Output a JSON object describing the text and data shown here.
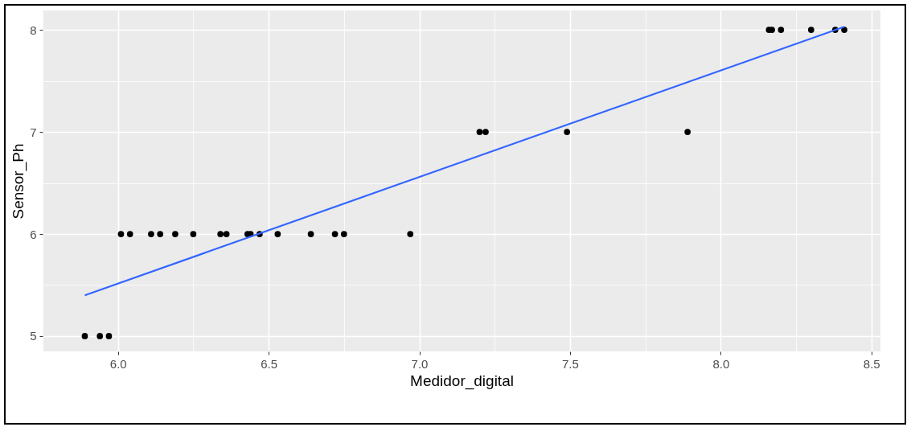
{
  "chart_data": {
    "type": "scatter",
    "xlabel": "Medidor_digital",
    "ylabel": "Sensor_Ph",
    "grid": true,
    "xlim": [
      5.75,
      8.53
    ],
    "ylim": [
      4.85,
      8.19
    ],
    "xticks": [
      {
        "value": 5.75,
        "label": null
      },
      {
        "value": 6.0,
        "label": "6.0"
      },
      {
        "value": 6.25,
        "label": null
      },
      {
        "value": 6.5,
        "label": "6.5"
      },
      {
        "value": 6.75,
        "label": null
      },
      {
        "value": 7.0,
        "label": "7.0"
      },
      {
        "value": 7.25,
        "label": null
      },
      {
        "value": 7.5,
        "label": "7.5"
      },
      {
        "value": 7.75,
        "label": null
      },
      {
        "value": 8.0,
        "label": "8.0"
      },
      {
        "value": 8.25,
        "label": null
      },
      {
        "value": 8.5,
        "label": "8.5"
      }
    ],
    "yticks": [
      5,
      {
        "value": 5.5,
        "label": null
      },
      6,
      {
        "value": 6.5,
        "label": null
      },
      7,
      {
        "value": 7.5,
        "label": null
      },
      8
    ],
    "series": [
      {
        "marker": "circle",
        "color": "#000000",
        "x": [
          5.89,
          5.94,
          5.97,
          6.01,
          6.04,
          6.11,
          6.14,
          6.19,
          6.25,
          6.34,
          6.36,
          6.43,
          6.44,
          6.47,
          6.53,
          6.64,
          6.72,
          6.75,
          6.97,
          7.2,
          7.22,
          7.49,
          7.89,
          8.16,
          8.17,
          8.2,
          8.3,
          8.38,
          8.41
        ],
        "values": [
          5,
          5,
          5,
          6,
          6,
          6,
          6,
          6,
          6,
          6,
          6,
          6,
          6,
          6,
          6,
          6,
          6,
          6,
          6,
          7,
          7,
          7,
          7,
          8,
          8,
          8,
          8,
          8,
          8
        ]
      },
      {
        "type": "line",
        "color": "#3366ff",
        "x": [
          5.89,
          8.41
        ],
        "values": [
          5.4,
          8.03
        ]
      }
    ]
  }
}
